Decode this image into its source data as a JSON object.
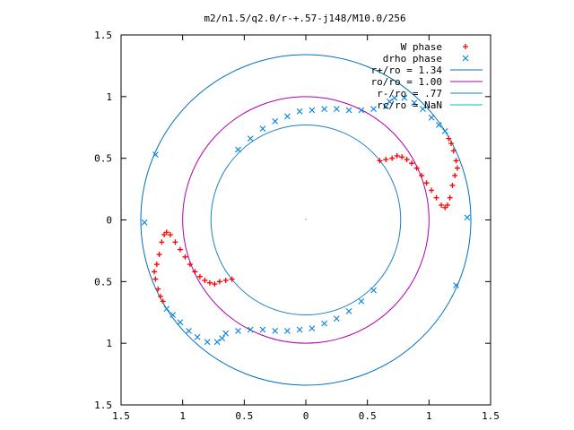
{
  "chart_data": {
    "type": "scatter",
    "title": "m2/n1.5/q2.0/r-+.57-j148/M10.0/256",
    "xlim": [
      -1.5,
      1.5
    ],
    "ylim": [
      -1.5,
      1.5
    ],
    "xticks": [
      -1.5,
      -1,
      -0.5,
      0,
      0.5,
      1,
      1.5
    ],
    "yticks": [
      -1.5,
      -1,
      -0.5,
      0,
      0.5,
      1,
      1.5
    ],
    "xtick_labels": [
      "1.5",
      "1",
      "0.5",
      "0",
      "0.5",
      "1",
      "1.5"
    ],
    "ytick_labels": [
      "1.5",
      "1",
      "0.5",
      "0",
      "0.5",
      "1",
      "1.5"
    ],
    "grid": false,
    "legend_position": "top-right",
    "legend": [
      {
        "label": "W phase",
        "kind": "plus",
        "color": "#ff0000"
      },
      {
        "label": "drho phase",
        "kind": "cross",
        "color": "#0080e0"
      },
      {
        "label": "r+/ro = 1.34",
        "kind": "line",
        "color": "#0070c0"
      },
      {
        "label": "ro/ro = 1.00",
        "kind": "line",
        "color": "#b000b0"
      },
      {
        "label": "r-/ro = .77",
        "kind": "line",
        "color": "#1e7fc8"
      },
      {
        "label": "rc/ro = NaN",
        "kind": "line",
        "color": "#00c0c0"
      }
    ],
    "circles": [
      {
        "name": "r+/ro",
        "radius": 1.34,
        "color": "#0070c0"
      },
      {
        "name": "ro/ro",
        "radius": 1.0,
        "color": "#b000b0"
      },
      {
        "name": "r-/ro",
        "radius": 0.77,
        "color": "#1e7fc8"
      }
    ],
    "series": [
      {
        "name": "W phase",
        "marker": "plus",
        "color": "#ff0000",
        "points": [
          [
            0.6,
            0.48
          ],
          [
            0.65,
            0.49
          ],
          [
            0.7,
            0.5
          ],
          [
            0.74,
            0.52
          ],
          [
            0.78,
            0.51
          ],
          [
            0.82,
            0.49
          ],
          [
            0.86,
            0.46
          ],
          [
            0.9,
            0.42
          ],
          [
            0.94,
            0.36
          ],
          [
            0.98,
            0.3
          ],
          [
            1.02,
            0.24
          ],
          [
            1.06,
            0.18
          ],
          [
            1.1,
            0.12
          ],
          [
            1.13,
            0.1
          ],
          [
            1.15,
            0.12
          ],
          [
            1.17,
            0.18
          ],
          [
            1.19,
            0.28
          ],
          [
            1.21,
            0.36
          ],
          [
            1.23,
            0.42
          ],
          [
            1.22,
            0.48
          ],
          [
            1.2,
            0.56
          ],
          [
            1.18,
            0.62
          ],
          [
            1.16,
            0.66
          ],
          [
            -0.6,
            -0.48
          ],
          [
            -0.65,
            -0.49
          ],
          [
            -0.7,
            -0.5
          ],
          [
            -0.74,
            -0.52
          ],
          [
            -0.78,
            -0.51
          ],
          [
            -0.82,
            -0.49
          ],
          [
            -0.86,
            -0.46
          ],
          [
            -0.9,
            -0.42
          ],
          [
            -0.94,
            -0.36
          ],
          [
            -0.98,
            -0.3
          ],
          [
            -1.02,
            -0.24
          ],
          [
            -1.06,
            -0.18
          ],
          [
            -1.1,
            -0.12
          ],
          [
            -1.13,
            -0.1
          ],
          [
            -1.15,
            -0.12
          ],
          [
            -1.17,
            -0.18
          ],
          [
            -1.19,
            -0.28
          ],
          [
            -1.21,
            -0.36
          ],
          [
            -1.23,
            -0.42
          ],
          [
            -1.22,
            -0.48
          ],
          [
            -1.2,
            -0.56
          ],
          [
            -1.18,
            -0.62
          ],
          [
            -1.16,
            -0.66
          ]
        ]
      },
      {
        "name": "drho phase",
        "marker": "cross",
        "color": "#0080e0",
        "points": [
          [
            0.55,
            -0.57
          ],
          [
            0.45,
            -0.66
          ],
          [
            0.35,
            -0.74
          ],
          [
            0.25,
            -0.8
          ],
          [
            0.15,
            -0.84
          ],
          [
            0.05,
            -0.88
          ],
          [
            -0.05,
            -0.89
          ],
          [
            -0.15,
            -0.9
          ],
          [
            -0.25,
            -0.9
          ],
          [
            -0.35,
            -0.89
          ],
          [
            -0.45,
            -0.89
          ],
          [
            -0.55,
            -0.9
          ],
          [
            -0.65,
            -0.92
          ],
          [
            -0.68,
            -0.96
          ],
          [
            -0.72,
            -0.99
          ],
          [
            -0.8,
            -0.99
          ],
          [
            -0.88,
            -0.95
          ],
          [
            -0.95,
            -0.9
          ],
          [
            -1.02,
            -0.83
          ],
          [
            -1.08,
            -0.77
          ],
          [
            -1.13,
            -0.72
          ],
          [
            1.31,
            0.02
          ],
          [
            1.22,
            -0.53
          ],
          [
            -0.55,
            0.57
          ],
          [
            -0.45,
            0.66
          ],
          [
            -0.35,
            0.74
          ],
          [
            -0.25,
            0.8
          ],
          [
            -0.15,
            0.84
          ],
          [
            -0.05,
            0.88
          ],
          [
            0.05,
            0.89
          ],
          [
            0.15,
            0.9
          ],
          [
            0.25,
            0.9
          ],
          [
            0.35,
            0.89
          ],
          [
            0.45,
            0.89
          ],
          [
            0.55,
            0.9
          ],
          [
            0.65,
            0.92
          ],
          [
            0.68,
            0.96
          ],
          [
            0.72,
            0.99
          ],
          [
            0.8,
            0.99
          ],
          [
            0.88,
            0.95
          ],
          [
            0.95,
            0.9
          ],
          [
            1.02,
            0.83
          ],
          [
            1.08,
            0.77
          ],
          [
            1.13,
            0.72
          ],
          [
            -1.31,
            -0.02
          ],
          [
            -1.22,
            0.53
          ]
        ]
      }
    ]
  }
}
